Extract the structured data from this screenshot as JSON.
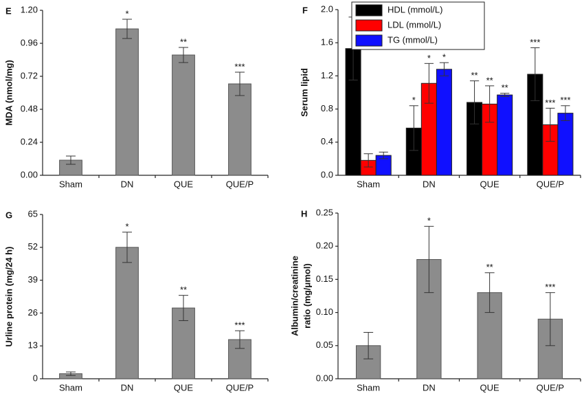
{
  "chart_data": [
    {
      "type": "bar",
      "panel_label": "E",
      "ylabel": "MDA (nmol/mg)",
      "categories": [
        "Sham",
        "DN",
        "QUE",
        "QUE/P"
      ],
      "values": [
        0.11,
        1.065,
        0.875,
        0.665
      ],
      "errors": [
        0.03,
        0.07,
        0.055,
        0.085
      ],
      "significance": [
        null,
        "*",
        "**",
        "***"
      ],
      "color": "#8c8c8c",
      "ylim": [
        0,
        1.2
      ],
      "yticks": [
        {
          "value": 0,
          "label": "0.00"
        },
        {
          "value": 0.24,
          "label": "0.24"
        },
        {
          "value": 0.48,
          "label": "0.48"
        },
        {
          "value": 0.72,
          "label": "0.72"
        },
        {
          "value": 0.96,
          "label": "0.96"
        },
        {
          "value": 1.2,
          "label": "1.20"
        }
      ]
    },
    {
      "type": "bar",
      "panel_label": "F",
      "ylabel": "Serum lipid",
      "categories": [
        "Sham",
        "DN",
        "QUE",
        "QUE/P"
      ],
      "series": [
        {
          "name": "HDL (mmol/L)",
          "color": "#000000",
          "values": [
            1.53,
            0.57,
            0.88,
            1.22
          ],
          "errors": [
            0.38,
            0.27,
            0.26,
            0.32
          ],
          "significance": [
            null,
            "*",
            "**",
            "***"
          ]
        },
        {
          "name": "LDL (mmol/L)",
          "color": "#ff0000",
          "values": [
            0.18,
            1.11,
            0.86,
            0.61
          ],
          "errors": [
            0.08,
            0.24,
            0.22,
            0.2
          ],
          "significance": [
            null,
            "*",
            "**",
            "***"
          ]
        },
        {
          "name": "TG (mmol/L)",
          "color": "#1010ff",
          "values": [
            0.24,
            1.28,
            0.97,
            0.75
          ],
          "errors": [
            0.04,
            0.08,
            0.02,
            0.09
          ],
          "significance": [
            null,
            "*",
            "**",
            "***"
          ]
        }
      ],
      "ylim": [
        0,
        2.0
      ],
      "yticks": [
        {
          "value": 0,
          "label": "0.0"
        },
        {
          "value": 0.4,
          "label": "0.4"
        },
        {
          "value": 0.8,
          "label": "0.8"
        },
        {
          "value": 1.2,
          "label": "1.2"
        },
        {
          "value": 1.6,
          "label": "1.6"
        },
        {
          "value": 2.0,
          "label": "2.0"
        }
      ]
    },
    {
      "type": "bar",
      "panel_label": "G",
      "ylabel": "Urline protein (mg/24 h)",
      "categories": [
        "Sham",
        "DN",
        "QUE",
        "QUE/P"
      ],
      "values": [
        2,
        52,
        28,
        15.5
      ],
      "errors": [
        0.7,
        6,
        5,
        3.5
      ],
      "significance": [
        null,
        "*",
        "**",
        "***"
      ],
      "color": "#8c8c8c",
      "ylim": [
        0,
        65
      ],
      "yticks": [
        0,
        13,
        26,
        39,
        52,
        65
      ]
    },
    {
      "type": "bar",
      "panel_label": "H",
      "ylabel": [
        "Albumin/creatinine",
        "ratio (mg/μmol)"
      ],
      "categories": [
        "Sham",
        "DN",
        "QUE",
        "QUE/P"
      ],
      "values": [
        0.05,
        0.18,
        0.13,
        0.09
      ],
      "errors": [
        0.02,
        0.05,
        0.03,
        0.04
      ],
      "significance": [
        null,
        "*",
        "**",
        "***"
      ],
      "color": "#8c8c8c",
      "ylim": [
        0,
        0.25
      ],
      "yticks": [
        {
          "value": 0,
          "label": "0.00"
        },
        {
          "value": 0.05,
          "label": "0.05"
        },
        {
          "value": 0.1,
          "label": "0.10"
        },
        {
          "value": 0.15,
          "label": "0.15"
        },
        {
          "value": 0.2,
          "label": "0.20"
        },
        {
          "value": 0.25,
          "label": "0.25"
        }
      ]
    }
  ]
}
